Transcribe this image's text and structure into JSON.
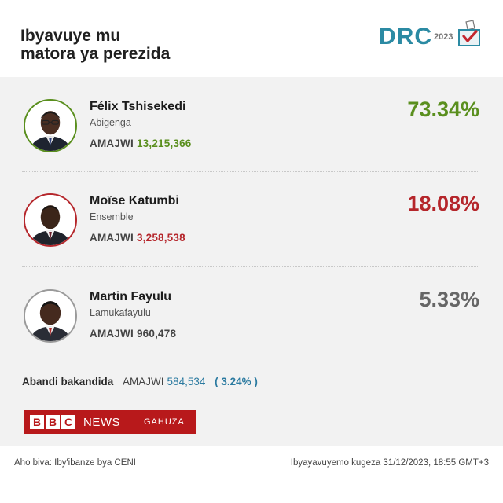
{
  "header": {
    "title_line1": "Ibyavuye mu",
    "title_line2": "matora ya perezida",
    "logo_text": "DRC",
    "logo_year": "2023"
  },
  "colors": {
    "winner": "#5a8f1e",
    "second": "#b5262b",
    "neutral": "#666666",
    "accent_blue": "#2b7aa0",
    "bbc_red": "#b8191b"
  },
  "candidates": [
    {
      "name": "Félix Tshisekedi",
      "party": "Abigenga",
      "votes_label": "AMAJWI",
      "votes": "13,215,366",
      "percent": "73.34%"
    },
    {
      "name": "Moïse Katumbi",
      "party": "Ensemble",
      "votes_label": "AMAJWI",
      "votes": "3,258,538",
      "percent": "18.08%"
    },
    {
      "name": "Martin Fayulu",
      "party": "Lamukafayulu",
      "votes_label": "AMAJWI",
      "votes": "960,478",
      "percent": "5.33%"
    }
  ],
  "others": {
    "label": "Abandi bakandida",
    "votes_label": "AMAJWI",
    "votes": "584,534",
    "percent": "( 3.24% )"
  },
  "brand": {
    "b1": "B",
    "b2": "B",
    "b3": "C",
    "news": "NEWS",
    "service": "GAHUZA"
  },
  "footer": {
    "source": "Aho biva: Iby'ibanze bya CENI",
    "updated": "Ibyayavuyemo kugeza 31/12/2023, 18:55 GMT+3"
  }
}
